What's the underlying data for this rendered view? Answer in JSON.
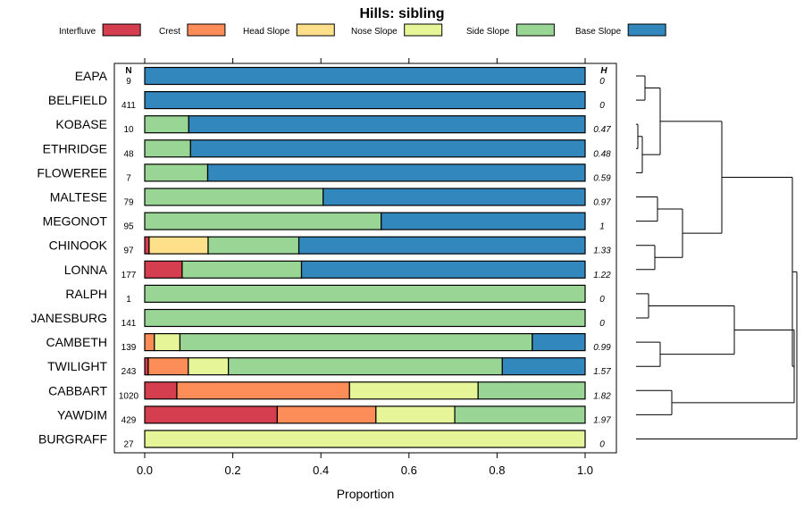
{
  "chart_data": {
    "type": "bar",
    "orientation": "horizontal",
    "stacked": true,
    "title": "Hills: sibling",
    "xlabel": "Proportion",
    "ylabel": "",
    "xlim": [
      0,
      1
    ],
    "x_ticks": [
      "0.0",
      "0.2",
      "0.4",
      "0.6",
      "0.8",
      "1.0"
    ],
    "n_header": "N",
    "h_header": "H",
    "legend_placement": "top",
    "series": [
      {
        "name": "Interfluve",
        "color": "#d53e4f"
      },
      {
        "name": "Crest",
        "color": "#fc8d59"
      },
      {
        "name": "Head Slope",
        "color": "#fee08b"
      },
      {
        "name": "Nose Slope",
        "color": "#e6f598"
      },
      {
        "name": "Side Slope",
        "color": "#99d594"
      },
      {
        "name": "Base Slope",
        "color": "#3288bd"
      }
    ],
    "categories": [
      "EAPA",
      "BELFIELD",
      "KOBASE",
      "ETHRIDGE",
      "FLOWEREE",
      "MALTESE",
      "MEGONOT",
      "CHINOOK",
      "LONNA",
      "RALPH",
      "JANESBURG",
      "CAMBETH",
      "TWILIGHT",
      "CABBART",
      "YAWDIM",
      "BURGRAFF"
    ],
    "n": [
      "9",
      "411",
      "10",
      "48",
      "7",
      "79",
      "95",
      "97",
      "177",
      "1",
      "141",
      "139",
      "243",
      "1020",
      "429",
      "27"
    ],
    "h": [
      "0",
      "0",
      "0.47",
      "0.48",
      "0.59",
      "0.97",
      "1",
      "1.33",
      "1.22",
      "0",
      "0",
      "0.99",
      "1.57",
      "1.82",
      "1.97",
      "0"
    ],
    "proportions": [
      [
        0,
        0,
        0,
        0,
        0,
        1.0
      ],
      [
        0,
        0,
        0,
        0,
        0,
        1.0
      ],
      [
        0,
        0,
        0,
        0,
        0.1,
        0.9
      ],
      [
        0,
        0,
        0,
        0,
        0.104,
        0.896
      ],
      [
        0,
        0,
        0,
        0,
        0.143,
        0.857
      ],
      [
        0,
        0,
        0,
        0,
        0.405,
        0.595
      ],
      [
        0,
        0,
        0,
        0,
        0.537,
        0.463
      ],
      [
        0.01,
        0,
        0.134,
        0,
        0.206,
        0.65
      ],
      [
        0.085,
        0,
        0,
        0,
        0.271,
        0.644
      ],
      [
        0,
        0,
        0,
        0,
        1.0,
        0
      ],
      [
        0,
        0,
        0,
        0,
        1.0,
        0
      ],
      [
        0,
        0.022,
        0,
        0.058,
        0.8,
        0.12
      ],
      [
        0.008,
        0.091,
        0,
        0.091,
        0.622,
        0.188
      ],
      [
        0.073,
        0.392,
        0,
        0.292,
        0.243,
        0
      ],
      [
        0.301,
        0.224,
        0,
        0.179,
        0.296,
        0
      ],
      [
        0,
        0,
        0,
        1.0,
        0,
        0
      ]
    ],
    "dendrogram_merge_order": [
      [
        "KOBASE",
        "ETHRIDGE"
      ],
      [
        "EAPA",
        "BELFIELD"
      ],
      [
        "RALPH",
        "JANESBURG"
      ],
      [
        "CHINOOK",
        "LONNA"
      ],
      [
        "CAMBETH",
        "TWILIGHT"
      ],
      [
        "MALTESE",
        "MEGONOT"
      ]
    ]
  }
}
